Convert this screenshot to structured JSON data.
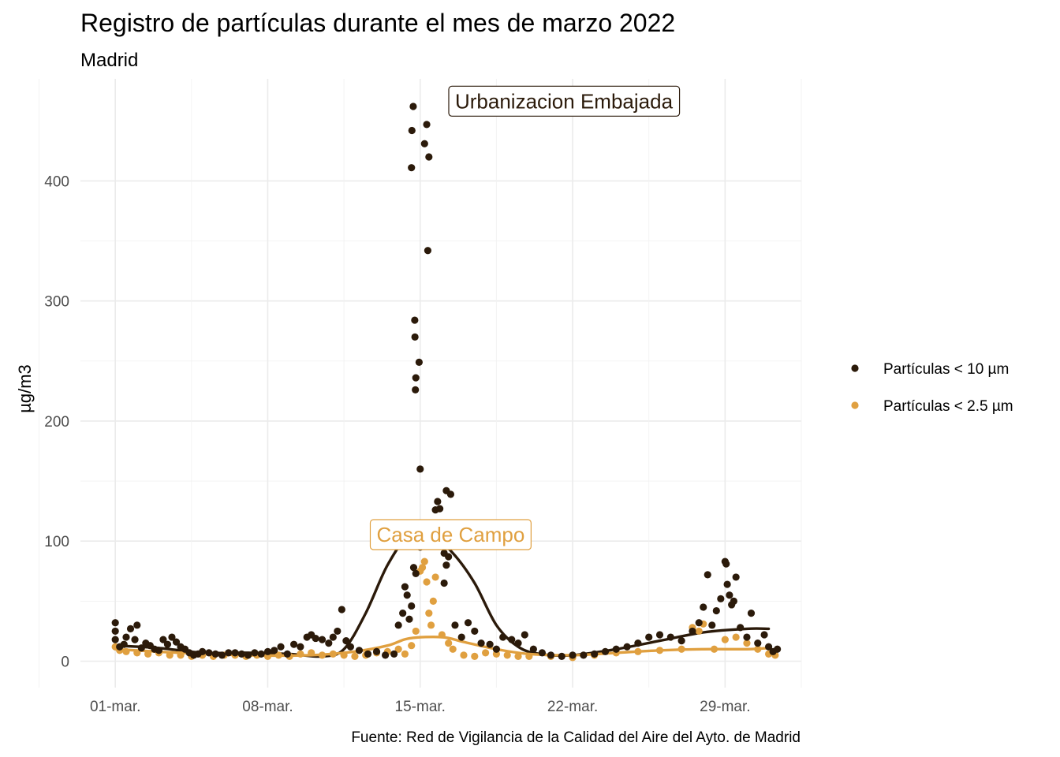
{
  "chart_data": {
    "type": "scatter",
    "title": "Registro de partículas durante el mes de marzo 2022",
    "subtitle": "Madrid",
    "xlabel": "",
    "ylabel": "µg/m3",
    "caption": "Fuente: Red de Vigilancia de la Calidad del Aire del Ayto. de Madrid",
    "x_ticks": [
      "01-mar.",
      "08-mar.",
      "15-mar.",
      "22-mar.",
      "29-mar."
    ],
    "x_tick_days": [
      1,
      8,
      15,
      22,
      29
    ],
    "xlim": [
      -0.6,
      32.5
    ],
    "y_ticks": [
      0,
      100,
      200,
      300,
      400
    ],
    "ylim": [
      -22,
      485
    ],
    "grid": true,
    "legend_position": "right",
    "annotations": [
      {
        "text": "Urbanizacion Embajada",
        "x": 21.6,
        "y": 465,
        "series": "Partículas < 10 µm"
      },
      {
        "text": "Casa de Campo",
        "x": 16.4,
        "y": 104,
        "series": "Partículas < 2.5 µm"
      }
    ],
    "series": [
      {
        "name": "Partículas < 10 µm",
        "color": "#2b1a0a",
        "smooth": [
          [
            1,
            13
          ],
          [
            3,
            11
          ],
          [
            5,
            7
          ],
          [
            7,
            7
          ],
          [
            9,
            6
          ],
          [
            10.5,
            4
          ],
          [
            11.5,
            10
          ],
          [
            12.5,
            40
          ],
          [
            13.5,
            80
          ],
          [
            14.5,
            105
          ],
          [
            15.5,
            105
          ],
          [
            16.5,
            90
          ],
          [
            17.5,
            65
          ],
          [
            18.5,
            30
          ],
          [
            19.5,
            12
          ],
          [
            20.5,
            6
          ],
          [
            22,
            5
          ],
          [
            24,
            10
          ],
          [
            26,
            17
          ],
          [
            28,
            24
          ],
          [
            30,
            27
          ],
          [
            31,
            27
          ]
        ],
        "points": [
          [
            1,
            32
          ],
          [
            1,
            25
          ],
          [
            1,
            18
          ],
          [
            1.2,
            12
          ],
          [
            1.4,
            14
          ],
          [
            1.5,
            20
          ],
          [
            1.7,
            27
          ],
          [
            1.9,
            18
          ],
          [
            2,
            30
          ],
          [
            2.2,
            11
          ],
          [
            2.4,
            15
          ],
          [
            2.6,
            13
          ],
          [
            2.8,
            10
          ],
          [
            3,
            9
          ],
          [
            3.2,
            18
          ],
          [
            3.4,
            14
          ],
          [
            3.6,
            20
          ],
          [
            3.8,
            16
          ],
          [
            4,
            12
          ],
          [
            4.2,
            10
          ],
          [
            4.4,
            7
          ],
          [
            4.6,
            5
          ],
          [
            4.8,
            6
          ],
          [
            5,
            8
          ],
          [
            5.3,
            7
          ],
          [
            5.6,
            6
          ],
          [
            5.9,
            5
          ],
          [
            6.2,
            7
          ],
          [
            6.5,
            7
          ],
          [
            6.8,
            6
          ],
          [
            7.1,
            5
          ],
          [
            7.4,
            7
          ],
          [
            7.7,
            6
          ],
          [
            8,
            8
          ],
          [
            8.3,
            9
          ],
          [
            8.6,
            12
          ],
          [
            8.9,
            6
          ],
          [
            9.2,
            14
          ],
          [
            9.5,
            12
          ],
          [
            9.8,
            20
          ],
          [
            10,
            22
          ],
          [
            10.2,
            19
          ],
          [
            10.5,
            18
          ],
          [
            10.8,
            15
          ],
          [
            11,
            20
          ],
          [
            11.2,
            25
          ],
          [
            11.4,
            43
          ],
          [
            11.6,
            17
          ],
          [
            11.8,
            12
          ],
          [
            12.2,
            9
          ],
          [
            12.6,
            6
          ],
          [
            13,
            8
          ],
          [
            13.4,
            5
          ],
          [
            13.8,
            6
          ],
          [
            14,
            30
          ],
          [
            14.2,
            40
          ],
          [
            14.3,
            62
          ],
          [
            14.4,
            55
          ],
          [
            14.5,
            35
          ],
          [
            14.6,
            46
          ],
          [
            14.7,
            78
          ],
          [
            14.8,
            73
          ],
          [
            14.9,
            97
          ],
          [
            15,
            95
          ],
          [
            14.6,
            411
          ],
          [
            14.62,
            442
          ],
          [
            14.68,
            462
          ],
          [
            14.75,
            284
          ],
          [
            14.76,
            270
          ],
          [
            14.8,
            236
          ],
          [
            14.78,
            226
          ],
          [
            14.95,
            249
          ],
          [
            15.0,
            160
          ],
          [
            15.2,
            431
          ],
          [
            15.3,
            447
          ],
          [
            15.4,
            420
          ],
          [
            15.35,
            342
          ],
          [
            15.7,
            126
          ],
          [
            15.8,
            133
          ],
          [
            15.9,
            127
          ],
          [
            16.1,
            90
          ],
          [
            16.2,
            80
          ],
          [
            16.3,
            87
          ],
          [
            16.2,
            142
          ],
          [
            16.4,
            139
          ],
          [
            16.1,
            65
          ],
          [
            16.6,
            30
          ],
          [
            16.9,
            20
          ],
          [
            17.2,
            32
          ],
          [
            17.5,
            25
          ],
          [
            17.8,
            15
          ],
          [
            18.2,
            14
          ],
          [
            18.5,
            10
          ],
          [
            18.8,
            20
          ],
          [
            19.2,
            18
          ],
          [
            19.5,
            15
          ],
          [
            19.8,
            22
          ],
          [
            20.2,
            10
          ],
          [
            20.6,
            7
          ],
          [
            21,
            5
          ],
          [
            21.5,
            4
          ],
          [
            22,
            5
          ],
          [
            22.5,
            5
          ],
          [
            23,
            6
          ],
          [
            23.5,
            8
          ],
          [
            24,
            10
          ],
          [
            24.5,
            12
          ],
          [
            25,
            15
          ],
          [
            25.5,
            20
          ],
          [
            26,
            22
          ],
          [
            26.5,
            20
          ],
          [
            27,
            17
          ],
          [
            27.5,
            25
          ],
          [
            27.8,
            32
          ],
          [
            28,
            45
          ],
          [
            28.2,
            72
          ],
          [
            28.4,
            30
          ],
          [
            28.6,
            42
          ],
          [
            28.8,
            52
          ],
          [
            29,
            83
          ],
          [
            29.05,
            81
          ],
          [
            29.1,
            64
          ],
          [
            29.2,
            55
          ],
          [
            29.3,
            47
          ],
          [
            29.4,
            50
          ],
          [
            29.5,
            70
          ],
          [
            29.7,
            28
          ],
          [
            30,
            20
          ],
          [
            30.2,
            40
          ],
          [
            30.5,
            15
          ],
          [
            30.8,
            22
          ],
          [
            31,
            12
          ],
          [
            31.2,
            8
          ],
          [
            31.4,
            10
          ]
        ]
      },
      {
        "name": "Partículas < 2.5 µm",
        "color": "#e0a040",
        "smooth": [
          [
            1,
            10
          ],
          [
            4,
            7
          ],
          [
            7,
            5
          ],
          [
            10,
            5
          ],
          [
            12,
            8
          ],
          [
            13.5,
            13
          ],
          [
            14.5,
            19
          ],
          [
            16,
            20
          ],
          [
            17,
            16
          ],
          [
            18.5,
            10
          ],
          [
            20,
            6
          ],
          [
            22,
            5
          ],
          [
            24,
            7
          ],
          [
            26,
            9
          ],
          [
            28,
            10
          ],
          [
            30,
            10
          ],
          [
            31,
            11
          ]
        ],
        "points": [
          [
            1,
            12
          ],
          [
            1.2,
            9
          ],
          [
            1.5,
            8
          ],
          [
            2,
            7
          ],
          [
            2.5,
            6
          ],
          [
            3,
            7
          ],
          [
            3.5,
            5
          ],
          [
            4,
            5
          ],
          [
            4.5,
            4
          ],
          [
            5,
            5
          ],
          [
            5.5,
            4
          ],
          [
            6,
            5
          ],
          [
            6.5,
            5
          ],
          [
            7,
            4
          ],
          [
            7.5,
            5
          ],
          [
            8,
            4
          ],
          [
            8.5,
            5
          ],
          [
            9,
            4
          ],
          [
            9.5,
            6
          ],
          [
            10,
            7
          ],
          [
            10.5,
            5
          ],
          [
            11,
            6
          ],
          [
            11.5,
            5
          ],
          [
            12,
            4
          ],
          [
            12.5,
            5
          ],
          [
            13,
            7
          ],
          [
            13.5,
            8
          ],
          [
            14,
            10
          ],
          [
            14.3,
            6
          ],
          [
            14.6,
            13
          ],
          [
            14.8,
            25
          ],
          [
            15.0,
            75
          ],
          [
            15.1,
            78
          ],
          [
            15.2,
            83
          ],
          [
            15.3,
            66
          ],
          [
            15.4,
            40
          ],
          [
            15.5,
            30
          ],
          [
            15.6,
            50
          ],
          [
            15.7,
            70
          ],
          [
            16,
            22
          ],
          [
            16.3,
            15
          ],
          [
            16.5,
            10
          ],
          [
            17,
            5
          ],
          [
            17.5,
            4
          ],
          [
            18,
            7
          ],
          [
            18.5,
            6
          ],
          [
            19,
            5
          ],
          [
            19.5,
            4
          ],
          [
            20,
            4
          ],
          [
            21,
            4
          ],
          [
            22,
            3
          ],
          [
            23,
            5
          ],
          [
            24,
            7
          ],
          [
            25,
            8
          ],
          [
            26,
            9
          ],
          [
            27,
            10
          ],
          [
            27.5,
            28
          ],
          [
            27.8,
            25
          ],
          [
            28,
            31
          ],
          [
            28.5,
            10
          ],
          [
            29,
            18
          ],
          [
            29.5,
            20
          ],
          [
            30,
            15
          ],
          [
            30.5,
            10
          ],
          [
            31,
            6
          ],
          [
            31.3,
            5
          ]
        ]
      }
    ]
  }
}
